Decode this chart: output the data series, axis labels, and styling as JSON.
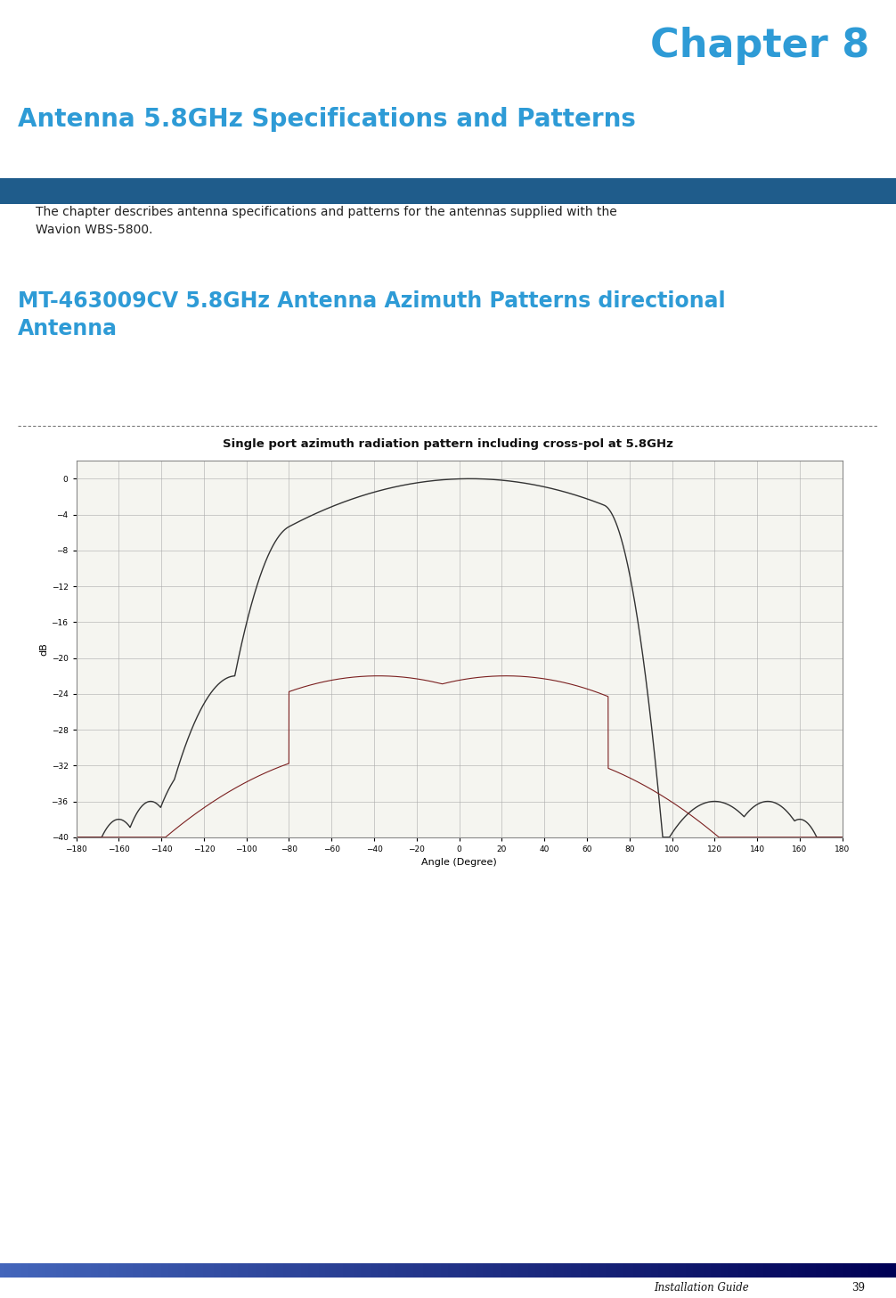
{
  "chapter_text": "Chapter 8",
  "chapter_color": "#2E9BD6",
  "title_text": "Antenna 5.8GHz Specifications and Patterns",
  "title_color": "#2E9BD6",
  "header_bar_color": "#1F5C8B",
  "body_text": "The chapter describes antenna specifications and patterns for the antennas supplied with the\nWavion WBS-5800.",
  "body_color": "#222222",
  "section_title_line1": "MT-463009CV 5.8GHz Antenna Azimuth Patterns directional",
  "section_title_line2": "Antenna",
  "section_title_color": "#2E9BD6",
  "chart_title": "Single port azimuth radiation pattern including cross-pol at 5.8GHz",
  "chart_xlabel": "Angle (Degree)",
  "chart_ylabel": "dB",
  "chart_xlim": [
    -180,
    180
  ],
  "chart_ylim": [
    -40,
    2
  ],
  "chart_ytick_labels": [
    "0",
    "-4",
    "-8",
    "-12",
    "-16",
    "-20",
    "-24",
    "-28",
    "-32",
    "-36",
    "-40"
  ],
  "chart_yticks": [
    0,
    -4,
    -8,
    -12,
    -16,
    -20,
    -24,
    -28,
    -32,
    -36,
    -40
  ],
  "chart_xtick_labels": [
    "-180",
    "-160",
    "-140",
    "-120",
    "-100",
    "-80",
    "-60",
    "-40",
    "-20",
    "0",
    "20",
    "40",
    "60",
    "80",
    "100",
    "120",
    "140",
    "160",
    "180"
  ],
  "chart_xticks": [
    -180,
    -160,
    -140,
    -120,
    -100,
    -80,
    -60,
    -40,
    -20,
    0,
    20,
    40,
    60,
    80,
    100,
    120,
    140,
    160,
    180
  ],
  "footer_text": "Installation Guide",
  "footer_page": "39",
  "page_bg": "#ffffff"
}
